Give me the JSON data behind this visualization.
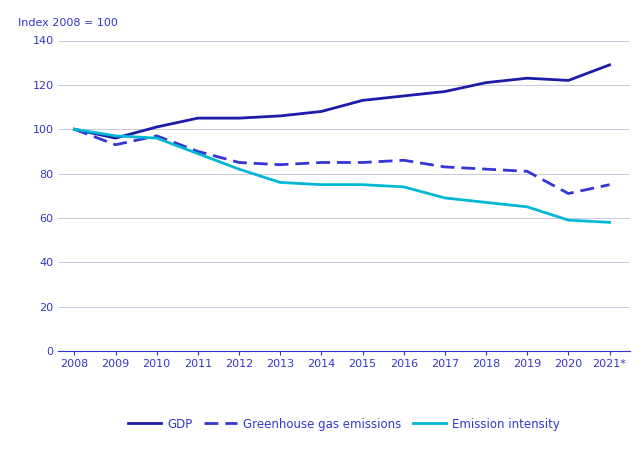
{
  "years": [
    2008,
    2009,
    2010,
    2011,
    2012,
    2013,
    2014,
    2015,
    2016,
    2017,
    2018,
    2019,
    2020,
    2021
  ],
  "gdp": [
    100,
    96,
    101,
    105,
    105,
    106,
    108,
    113,
    115,
    117,
    121,
    123,
    122,
    129
  ],
  "ghg": [
    100,
    93,
    97,
    90,
    85,
    84,
    85,
    85,
    86,
    83,
    82,
    81,
    71,
    75
  ],
  "emission_intensity": [
    100,
    97,
    96,
    89,
    82,
    76,
    75,
    75,
    74,
    69,
    67,
    65,
    59,
    58
  ],
  "gdp_color": "#1c1ca8",
  "ghg_color": "#3535d4",
  "emission_color": "#00b8d4",
  "grid_color": "#c8c8e0",
  "axis_color": "#3535cc",
  "text_color": "#3535cc",
  "ylabel": "Index 2008 = 100",
  "ylim": [
    0,
    140
  ],
  "yticks": [
    0,
    20,
    40,
    60,
    80,
    100,
    120,
    140
  ],
  "legend_gdp": "GDP",
  "legend_ghg": "Greenhouse gas emissions",
  "legend_ei": "Emission intensity",
  "x_last_label": "2021*"
}
